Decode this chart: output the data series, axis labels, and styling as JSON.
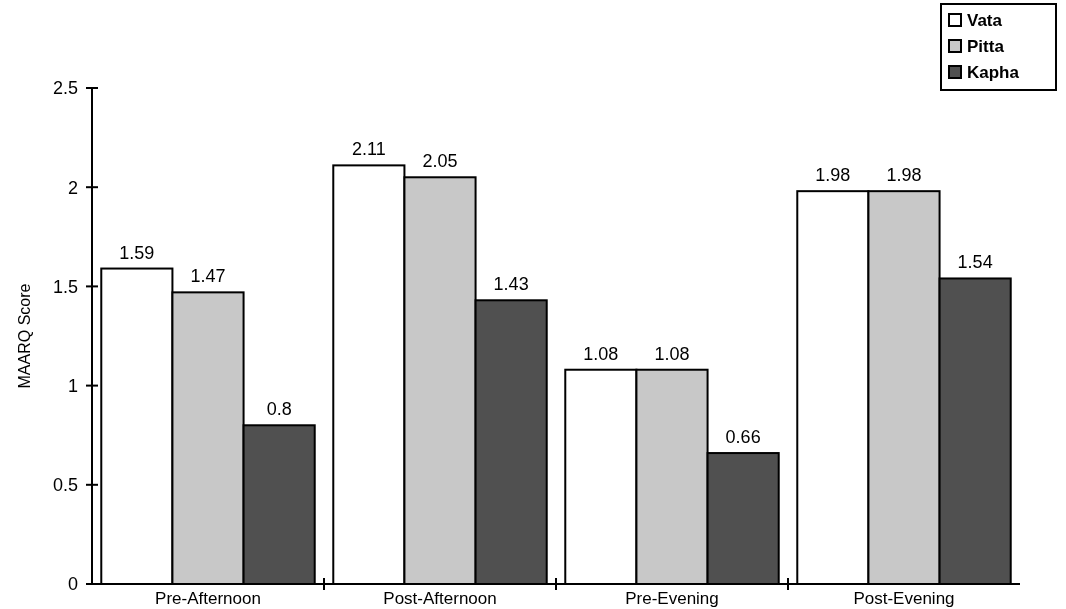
{
  "chart_data": {
    "type": "bar",
    "ylabel": "MAARQ Score",
    "categories": [
      "Pre-Afternoon",
      "Post-Afternoon",
      "Pre-Evening",
      "Post-Evening"
    ],
    "series": [
      {
        "name": "Vata",
        "color": "#ffffff",
        "values": [
          1.59,
          2.11,
          1.08,
          1.98
        ]
      },
      {
        "name": "Pitta",
        "color": "#c8c8c8",
        "values": [
          1.47,
          2.05,
          1.08,
          1.98
        ]
      },
      {
        "name": "Kapha",
        "color": "#505050",
        "values": [
          0.8,
          1.43,
          0.66,
          1.54
        ]
      }
    ],
    "ylim": [
      0,
      2.5
    ],
    "yticks": [
      0,
      0.5,
      1,
      1.5,
      2,
      2.5
    ],
    "data_labels": true,
    "legend": "top right",
    "grid": false
  }
}
